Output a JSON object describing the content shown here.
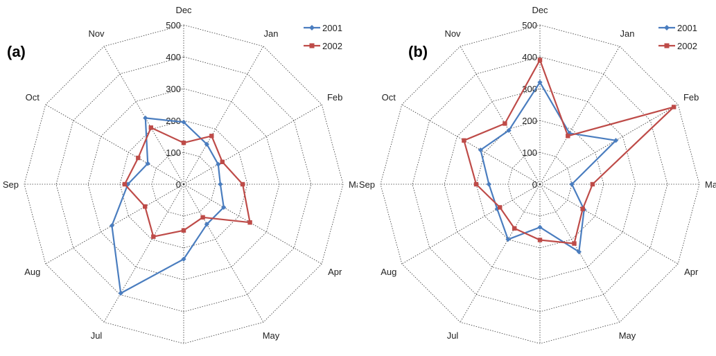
{
  "chart_data": [
    {
      "type": "radar",
      "panel_label": "(a)",
      "categories": [
        "Dec",
        "Jan",
        "Feb",
        "Mar",
        "Apr",
        "May",
        "Jun",
        "Jul",
        "Aug",
        "Sep",
        "Oct",
        "Nov"
      ],
      "radial_ticks": [
        "0",
        "100",
        "200",
        "300",
        "400",
        "500"
      ],
      "rlim": [
        0,
        500
      ],
      "grid": true,
      "legend_position": "top-right",
      "series": [
        {
          "name": "2001",
          "color": "#4a7dbf",
          "marker": "diamond",
          "values": [
            195,
            145,
            125,
            115,
            145,
            145,
            235,
            395,
            260,
            175,
            130,
            240
          ]
        },
        {
          "name": "2002",
          "color": "#be4b48",
          "marker": "square",
          "values": [
            130,
            175,
            140,
            185,
            240,
            120,
            145,
            190,
            140,
            185,
            165,
            205
          ]
        }
      ]
    },
    {
      "type": "radar",
      "panel_label": "(b)",
      "categories": [
        "Dec",
        "Jan",
        "Feb",
        "Mar",
        "Apr",
        "May",
        "Jun",
        "Jul",
        "Aug",
        "Sep",
        "Oct",
        "Nov"
      ],
      "radial_ticks": [
        "0",
        "100",
        "200",
        "300",
        "400",
        "500"
      ],
      "rlim": [
        0,
        500
      ],
      "grid": true,
      "legend_position": "top-right",
      "series": [
        {
          "name": "2001",
          "color": "#4a7dbf",
          "marker": "diamond",
          "values": [
            320,
            185,
            275,
            100,
            160,
            245,
            135,
            200,
            155,
            160,
            215,
            195
          ]
        },
        {
          "name": "2002",
          "color": "#be4b48",
          "marker": "square",
          "values": [
            390,
            175,
            485,
            165,
            155,
            215,
            175,
            160,
            145,
            200,
            275,
            220
          ]
        }
      ]
    }
  ]
}
